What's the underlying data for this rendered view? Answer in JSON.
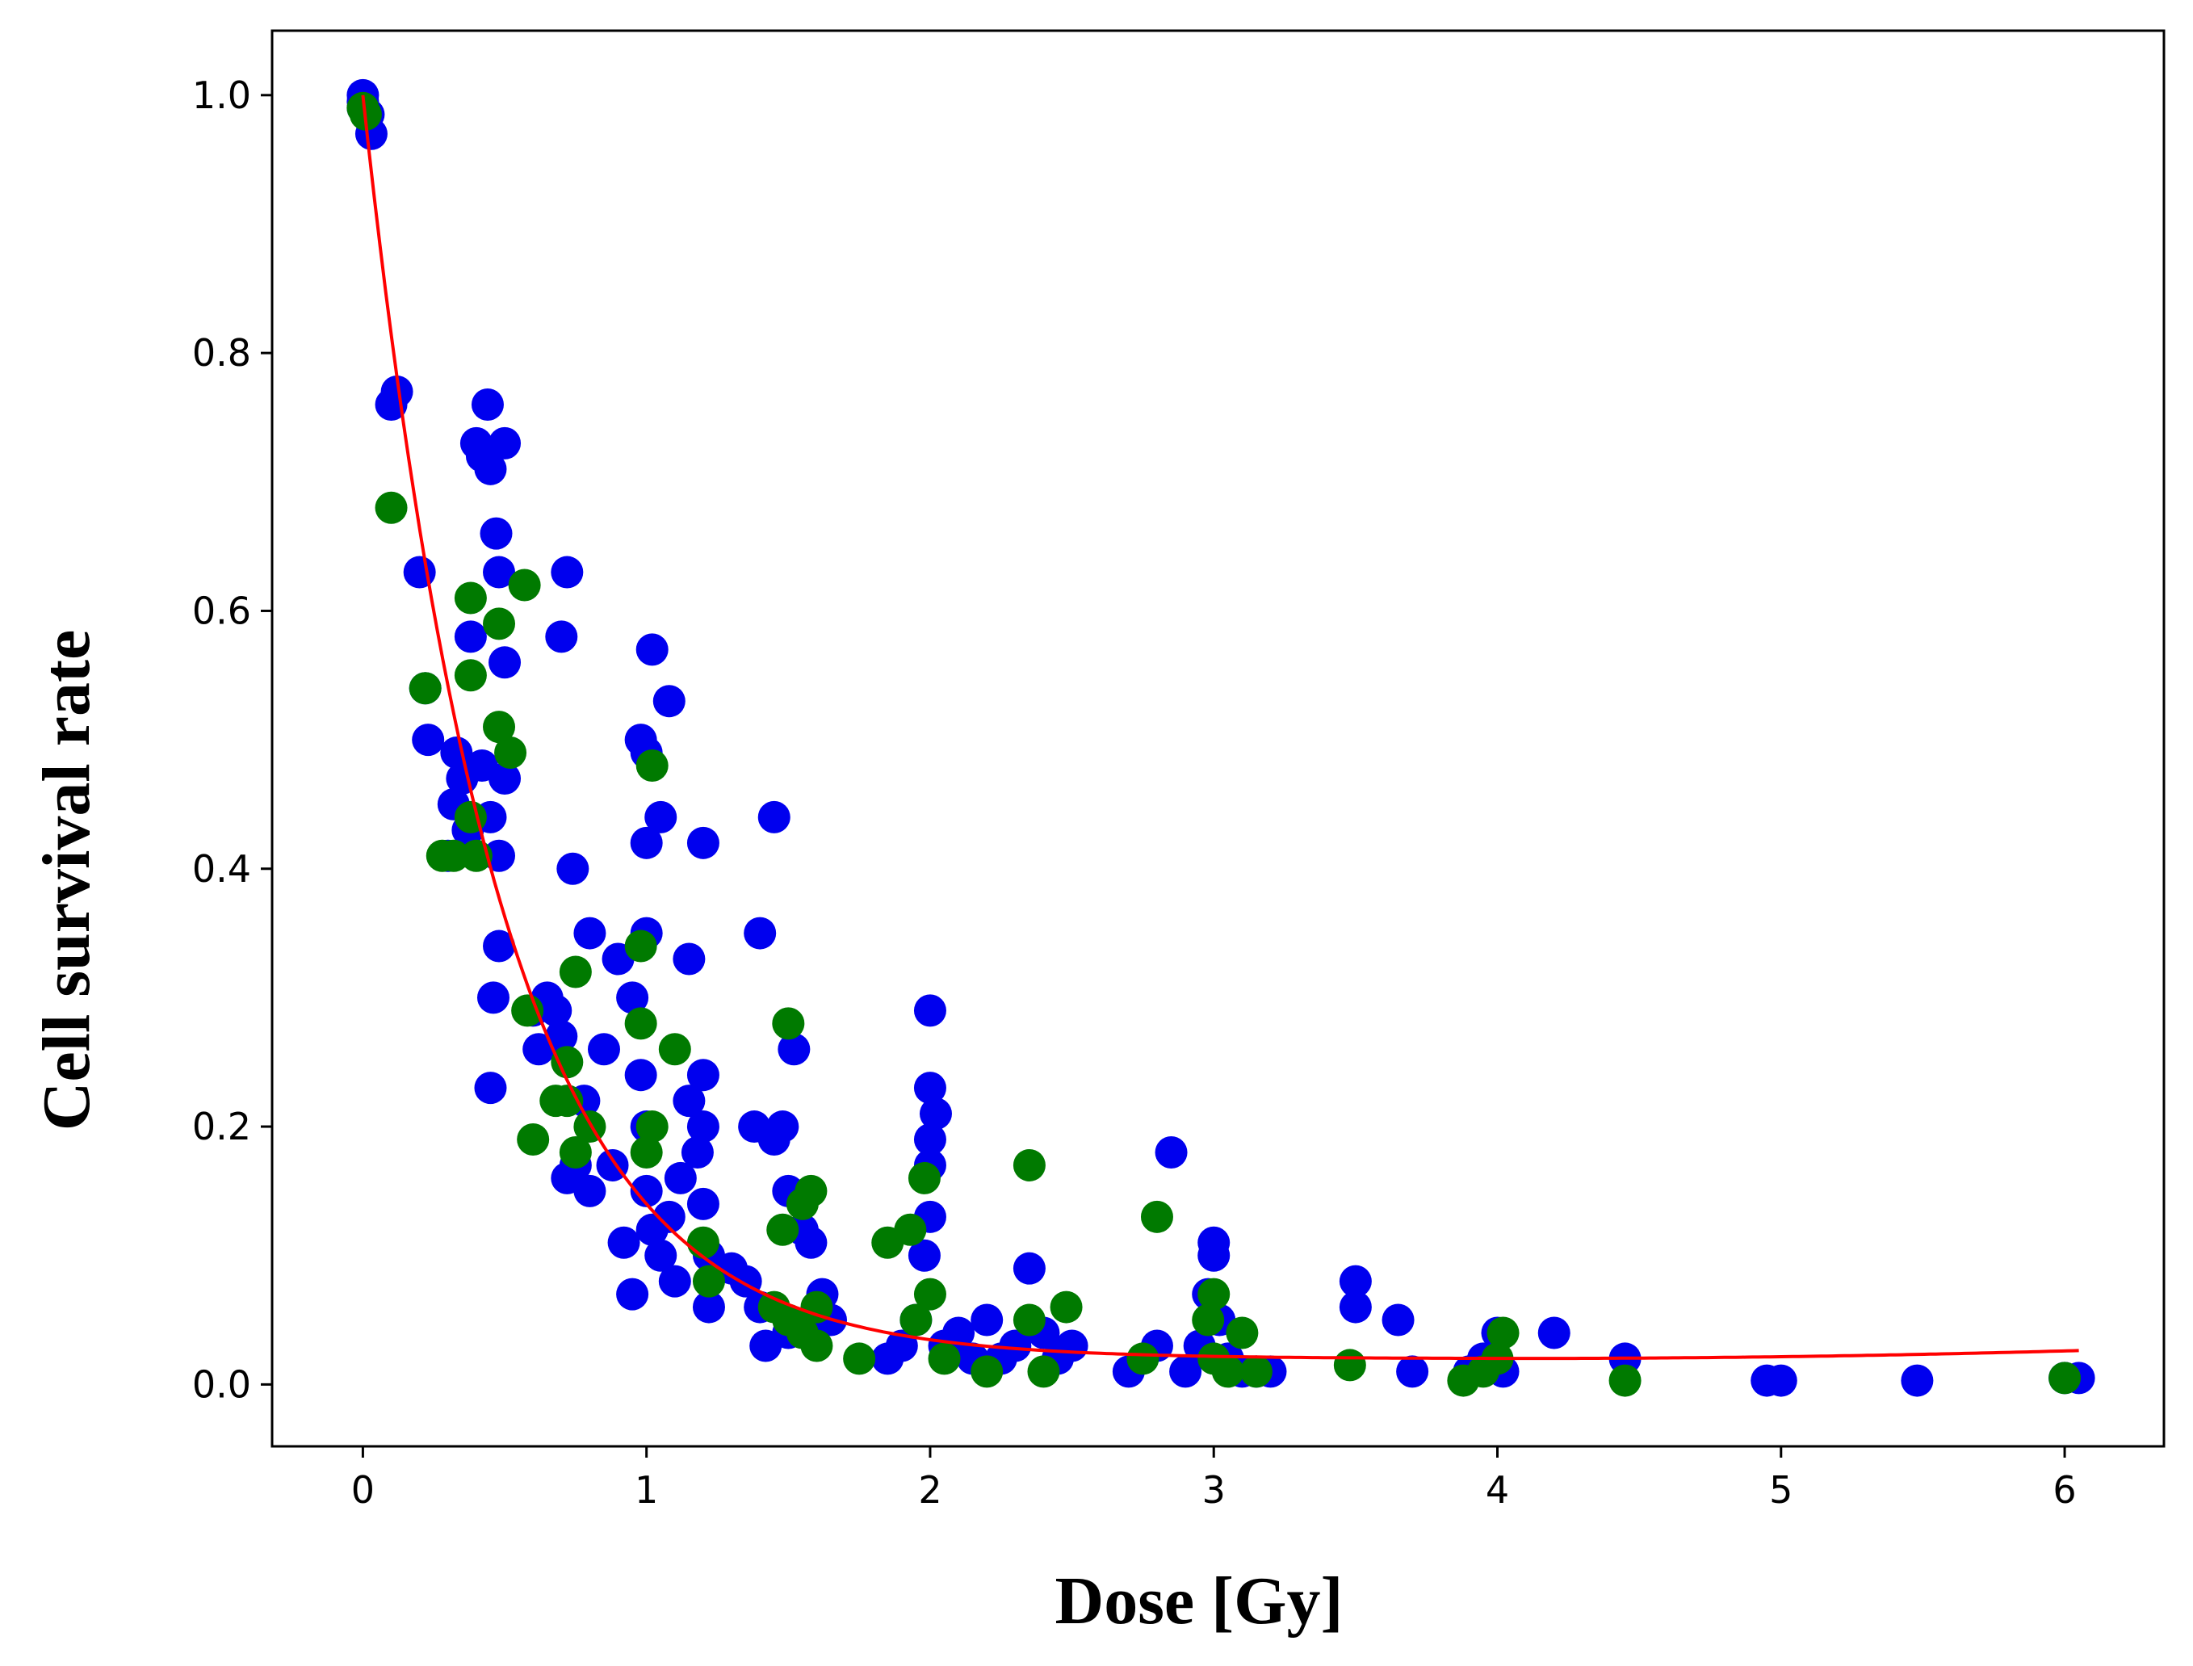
{
  "chart_data": {
    "type": "scatter",
    "title": "",
    "xlabel": "Dose [Gy]",
    "ylabel": "Cell survival rate",
    "xlim": [
      -0.32,
      6.35
    ],
    "ylim": [
      -0.048,
      1.05
    ],
    "xticks": [
      0,
      1,
      2,
      3,
      4,
      5,
      6
    ],
    "yticks": [
      0.0,
      0.2,
      0.4,
      0.6,
      0.8,
      1.0
    ],
    "xtick_labels": [
      "0",
      "1",
      "2",
      "3",
      "4",
      "5",
      "6"
    ],
    "ytick_labels": [
      "0.0",
      "0.2",
      "0.4",
      "0.6",
      "0.8",
      "1.0"
    ],
    "grid": false,
    "colors": {
      "blue": "#0000ee",
      "green": "#007a00",
      "fit": "#ff0000"
    },
    "series": [
      {
        "type": "scatter",
        "color": "#0000ee",
        "points": [
          [
            0,
            1.0
          ],
          [
            0,
            0.99
          ],
          [
            0.02,
            0.985
          ],
          [
            0.03,
            0.97
          ],
          [
            0,
            0.995
          ],
          [
            0.1,
            0.76
          ],
          [
            0.12,
            0.77
          ],
          [
            0.2,
            0.63
          ],
          [
            0.22,
            0.54
          ],
          [
            0.23,
            0.5
          ],
          [
            0.3,
            0.41
          ],
          [
            0.32,
            0.45
          ],
          [
            0.33,
            0.49
          ],
          [
            0.35,
            0.47
          ],
          [
            0.37,
            0.43
          ],
          [
            0.4,
            0.73
          ],
          [
            0.42,
            0.72
          ],
          [
            0.44,
            0.76
          ],
          [
            0.45,
            0.71
          ],
          [
            0.47,
            0.66
          ],
          [
            0.5,
            0.73
          ],
          [
            0.48,
            0.63
          ],
          [
            0.5,
            0.56
          ],
          [
            0.38,
            0.58
          ],
          [
            0.42,
            0.48
          ],
          [
            0.45,
            0.44
          ],
          [
            0.48,
            0.41
          ],
          [
            0.5,
            0.47
          ],
          [
            0.48,
            0.34
          ],
          [
            0.46,
            0.3
          ],
          [
            0.45,
            0.23
          ],
          [
            0.6,
            0.29
          ],
          [
            0.62,
            0.26
          ],
          [
            0.65,
            0.3
          ],
          [
            0.7,
            0.58
          ],
          [
            0.72,
            0.63
          ],
          [
            0.74,
            0.4
          ],
          [
            0.8,
            0.35
          ],
          [
            0.68,
            0.29
          ],
          [
            0.7,
            0.27
          ],
          [
            0.72,
            0.16
          ],
          [
            0.75,
            0.17
          ],
          [
            0.78,
            0.22
          ],
          [
            0.8,
            0.15
          ],
          [
            0.85,
            0.26
          ],
          [
            0.88,
            0.17
          ],
          [
            0.9,
            0.33
          ],
          [
            0.92,
            0.11
          ],
          [
            0.95,
            0.07
          ],
          [
            0.95,
            0.3
          ],
          [
            0.98,
            0.5
          ],
          [
            1.0,
            0.49
          ],
          [
            1.0,
            0.42
          ],
          [
            1.0,
            0.35
          ],
          [
            1.02,
            0.57
          ],
          [
            1.05,
            0.44
          ],
          [
            1.08,
            0.53
          ],
          [
            0.98,
            0.24
          ],
          [
            1.0,
            0.2
          ],
          [
            1.0,
            0.15
          ],
          [
            1.02,
            0.12
          ],
          [
            1.05,
            0.1
          ],
          [
            1.08,
            0.13
          ],
          [
            1.1,
            0.08
          ],
          [
            1.12,
            0.16
          ],
          [
            1.15,
            0.22
          ],
          [
            1.15,
            0.33
          ],
          [
            1.2,
            0.42
          ],
          [
            1.2,
            0.24
          ],
          [
            1.2,
            0.2
          ],
          [
            1.18,
            0.18
          ],
          [
            1.2,
            0.14
          ],
          [
            1.22,
            0.1
          ],
          [
            1.22,
            0.06
          ],
          [
            1.3,
            0.09
          ],
          [
            1.35,
            0.08
          ],
          [
            1.38,
            0.2
          ],
          [
            1.4,
            0.35
          ],
          [
            1.45,
            0.44
          ],
          [
            1.45,
            0.19
          ],
          [
            1.48,
            0.2
          ],
          [
            1.5,
            0.15
          ],
          [
            1.52,
            0.26
          ],
          [
            1.55,
            0.12
          ],
          [
            1.58,
            0.11
          ],
          [
            1.4,
            0.06
          ],
          [
            1.42,
            0.03
          ],
          [
            1.5,
            0.04
          ],
          [
            1.62,
            0.07
          ],
          [
            1.65,
            0.05
          ],
          [
            1.85,
            0.02
          ],
          [
            1.9,
            0.03
          ],
          [
            1.95,
            0.05
          ],
          [
            1.98,
            0.1
          ],
          [
            2.0,
            0.13
          ],
          [
            2.0,
            0.17
          ],
          [
            2.0,
            0.19
          ],
          [
            2.0,
            0.23
          ],
          [
            2.02,
            0.21
          ],
          [
            2.0,
            0.29
          ],
          [
            2.05,
            0.03
          ],
          [
            2.1,
            0.04
          ],
          [
            2.15,
            0.02
          ],
          [
            2.2,
            0.05
          ],
          [
            2.25,
            0.02
          ],
          [
            2.3,
            0.03
          ],
          [
            2.35,
            0.09
          ],
          [
            2.4,
            0.04
          ],
          [
            2.45,
            0.02
          ],
          [
            2.5,
            0.03
          ],
          [
            2.7,
            0.01
          ],
          [
            2.8,
            0.03
          ],
          [
            2.85,
            0.18
          ],
          [
            2.9,
            0.01
          ],
          [
            2.95,
            0.03
          ],
          [
            2.98,
            0.07
          ],
          [
            3.0,
            0.1
          ],
          [
            3.0,
            0.11
          ],
          [
            3.02,
            0.05
          ],
          [
            3.05,
            0.02
          ],
          [
            3.1,
            0.01
          ],
          [
            3.15,
            0.01
          ],
          [
            3.2,
            0.01
          ],
          [
            3.5,
            0.08
          ],
          [
            3.5,
            0.06
          ],
          [
            3.65,
            0.05
          ],
          [
            3.7,
            0.01
          ],
          [
            3.9,
            0.01
          ],
          [
            3.95,
            0.02
          ],
          [
            4.0,
            0.04
          ],
          [
            4.02,
            0.01
          ],
          [
            4.2,
            0.04
          ],
          [
            4.45,
            0.02
          ],
          [
            4.95,
            0.003
          ],
          [
            5.0,
            0.003
          ],
          [
            5.48,
            0.003
          ],
          [
            6.0,
            0.005
          ],
          [
            6.05,
            0.005
          ]
        ]
      },
      {
        "type": "scatter",
        "color": "#007a00",
        "points": [
          [
            0,
            0.99
          ],
          [
            0.01,
            0.985
          ],
          [
            0.1,
            0.68
          ],
          [
            0.22,
            0.54
          ],
          [
            0.28,
            0.41
          ],
          [
            0.32,
            0.41
          ],
          [
            0.38,
            0.61
          ],
          [
            0.38,
            0.55
          ],
          [
            0.38,
            0.44
          ],
          [
            0.4,
            0.41
          ],
          [
            0.48,
            0.59
          ],
          [
            0.48,
            0.51
          ],
          [
            0.52,
            0.49
          ],
          [
            0.57,
            0.62
          ],
          [
            0.58,
            0.29
          ],
          [
            0.6,
            0.19
          ],
          [
            0.68,
            0.22
          ],
          [
            0.72,
            0.25
          ],
          [
            0.72,
            0.22
          ],
          [
            0.75,
            0.32
          ],
          [
            0.75,
            0.18
          ],
          [
            0.8,
            0.2
          ],
          [
            0.98,
            0.34
          ],
          [
            0.98,
            0.28
          ],
          [
            1.0,
            0.18
          ],
          [
            1.02,
            0.48
          ],
          [
            1.02,
            0.2
          ],
          [
            1.1,
            0.26
          ],
          [
            1.2,
            0.11
          ],
          [
            1.22,
            0.08
          ],
          [
            1.45,
            0.06
          ],
          [
            1.48,
            0.12
          ],
          [
            1.5,
            0.28
          ],
          [
            1.5,
            0.05
          ],
          [
            1.55,
            0.04
          ],
          [
            1.55,
            0.14
          ],
          [
            1.58,
            0.15
          ],
          [
            1.6,
            0.06
          ],
          [
            1.6,
            0.03
          ],
          [
            1.75,
            0.02
          ],
          [
            1.85,
            0.11
          ],
          [
            1.93,
            0.12
          ],
          [
            1.95,
            0.05
          ],
          [
            1.98,
            0.16
          ],
          [
            2.0,
            0.07
          ],
          [
            2.05,
            0.02
          ],
          [
            2.2,
            0.01
          ],
          [
            2.35,
            0.17
          ],
          [
            2.35,
            0.05
          ],
          [
            2.4,
            0.01
          ],
          [
            2.48,
            0.06
          ],
          [
            2.75,
            0.02
          ],
          [
            2.8,
            0.13
          ],
          [
            2.98,
            0.05
          ],
          [
            3.0,
            0.07
          ],
          [
            3.0,
            0.02
          ],
          [
            3.05,
            0.01
          ],
          [
            3.1,
            0.04
          ],
          [
            3.15,
            0.01
          ],
          [
            3.48,
            0.015
          ],
          [
            3.88,
            0.003
          ],
          [
            3.95,
            0.01
          ],
          [
            4.0,
            0.02
          ],
          [
            4.02,
            0.04
          ],
          [
            4.45,
            0.003
          ],
          [
            6.0,
            0.005
          ]
        ]
      },
      {
        "type": "line",
        "color": "#ff0000",
        "model": "0.98*exp(-2.1*x) + 0.02 + 0.0015*(x-4)^2 for x>=4",
        "x_range": [
          0,
          6.05
        ]
      }
    ]
  }
}
